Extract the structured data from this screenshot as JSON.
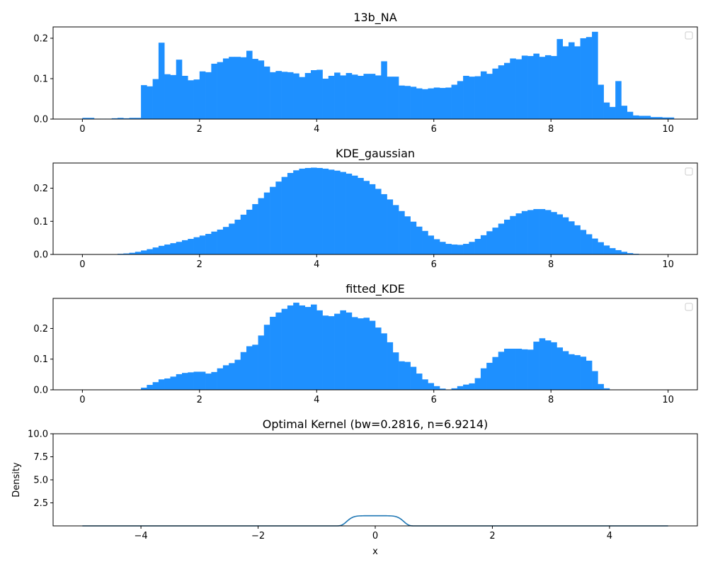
{
  "chart_data": [
    {
      "type": "bar",
      "title": "13b_NA",
      "xlabel": "",
      "ylabel": "",
      "xlim": [
        -0.5,
        10.5
      ],
      "ylim": [
        0,
        0.228
      ],
      "xticks": [
        0,
        2,
        4,
        6,
        8,
        10
      ],
      "yticks": [
        0.0,
        0.1,
        0.2
      ],
      "ytick_labels": [
        "0.0",
        "0.1",
        "0.2"
      ],
      "grid": false,
      "legend": "top-right",
      "bin_start": 0,
      "bin_width": 0.1,
      "color": "#1e90ff",
      "values": [
        0.003,
        0.003,
        0.001,
        0.001,
        0.001,
        0.002,
        0.003,
        0.002,
        0.003,
        0.003,
        0.084,
        0.081,
        0.099,
        0.189,
        0.111,
        0.109,
        0.147,
        0.107,
        0.096,
        0.098,
        0.118,
        0.116,
        0.137,
        0.141,
        0.15,
        0.154,
        0.154,
        0.153,
        0.169,
        0.149,
        0.145,
        0.13,
        0.116,
        0.119,
        0.117,
        0.116,
        0.113,
        0.104,
        0.114,
        0.121,
        0.122,
        0.1,
        0.107,
        0.115,
        0.108,
        0.114,
        0.11,
        0.107,
        0.112,
        0.112,
        0.108,
        0.143,
        0.105,
        0.105,
        0.083,
        0.082,
        0.08,
        0.076,
        0.074,
        0.076,
        0.078,
        0.077,
        0.078,
        0.085,
        0.094,
        0.107,
        0.105,
        0.106,
        0.118,
        0.112,
        0.125,
        0.133,
        0.139,
        0.15,
        0.148,
        0.157,
        0.156,
        0.162,
        0.154,
        0.158,
        0.156,
        0.198,
        0.18,
        0.19,
        0.18,
        0.2,
        0.203,
        0.216,
        0.085,
        0.041,
        0.03,
        0.094,
        0.033,
        0.018,
        0.009,
        0.008,
        0.008,
        0.005,
        0.005,
        0.004,
        0.004
      ]
    },
    {
      "type": "bar",
      "title": "KDE_gaussian",
      "xlabel": "",
      "ylabel": "",
      "xlim": [
        -0.5,
        10.5
      ],
      "ylim": [
        0,
        0.276
      ],
      "xticks": [
        0,
        2,
        4,
        6,
        8,
        10
      ],
      "yticks": [
        0.0,
        0.1,
        0.2
      ],
      "ytick_labels": [
        "0.0",
        "0.1",
        "0.2"
      ],
      "grid": false,
      "legend": "top-right",
      "bin_start": 0,
      "bin_width": 0.1,
      "color": "#1e90ff",
      "values": [
        0,
        0,
        0,
        0,
        0.001,
        0.001,
        0.002,
        0.003,
        0.005,
        0.008,
        0.012,
        0.016,
        0.021,
        0.026,
        0.03,
        0.034,
        0.038,
        0.043,
        0.047,
        0.052,
        0.057,
        0.062,
        0.069,
        0.075,
        0.083,
        0.093,
        0.105,
        0.12,
        0.135,
        0.152,
        0.17,
        0.187,
        0.204,
        0.22,
        0.234,
        0.246,
        0.254,
        0.259,
        0.261,
        0.262,
        0.261,
        0.259,
        0.256,
        0.253,
        0.249,
        0.244,
        0.238,
        0.231,
        0.222,
        0.212,
        0.198,
        0.182,
        0.166,
        0.149,
        0.131,
        0.115,
        0.099,
        0.084,
        0.071,
        0.057,
        0.046,
        0.038,
        0.032,
        0.03,
        0.029,
        0.032,
        0.038,
        0.047,
        0.058,
        0.07,
        0.081,
        0.093,
        0.105,
        0.116,
        0.124,
        0.131,
        0.134,
        0.137,
        0.137,
        0.134,
        0.128,
        0.121,
        0.112,
        0.1,
        0.088,
        0.074,
        0.061,
        0.048,
        0.037,
        0.027,
        0.019,
        0.013,
        0.008,
        0.004,
        0.002,
        0.001,
        0,
        0,
        0,
        0,
        0
      ]
    },
    {
      "type": "bar",
      "title": "fitted_KDE",
      "xlabel": "",
      "ylabel": "",
      "xlim": [
        -0.5,
        10.5
      ],
      "ylim": [
        0,
        0.298
      ],
      "xticks": [
        0,
        2,
        4,
        6,
        8,
        10
      ],
      "yticks": [
        0.0,
        0.1,
        0.2
      ],
      "ytick_labels": [
        "0.0",
        "0.1",
        "0.2"
      ],
      "grid": false,
      "legend": "top-right",
      "bin_start": 0,
      "bin_width": 0.1,
      "color": "#1e90ff",
      "values": [
        0,
        0,
        0,
        0,
        0,
        0,
        0,
        0,
        0,
        0,
        0.007,
        0.016,
        0.025,
        0.034,
        0.037,
        0.043,
        0.051,
        0.055,
        0.057,
        0.059,
        0.059,
        0.053,
        0.058,
        0.07,
        0.08,
        0.087,
        0.098,
        0.123,
        0.142,
        0.147,
        0.177,
        0.212,
        0.238,
        0.252,
        0.264,
        0.275,
        0.284,
        0.275,
        0.27,
        0.278,
        0.259,
        0.242,
        0.24,
        0.248,
        0.259,
        0.252,
        0.237,
        0.233,
        0.235,
        0.225,
        0.203,
        0.184,
        0.155,
        0.122,
        0.093,
        0.091,
        0.075,
        0.053,
        0.034,
        0.022,
        0.012,
        0.004,
        0,
        0.005,
        0.012,
        0.017,
        0.021,
        0.038,
        0.07,
        0.088,
        0.107,
        0.124,
        0.134,
        0.134,
        0.134,
        0.132,
        0.131,
        0.157,
        0.168,
        0.161,
        0.155,
        0.138,
        0.126,
        0.116,
        0.113,
        0.108,
        0.095,
        0.061,
        0.019,
        0.005,
        0,
        0,
        0,
        0,
        0,
        0,
        0,
        0,
        0,
        0,
        0
      ]
    },
    {
      "type": "line",
      "title": "Optimal Kernel (bw=0.2816, n=6.9214)",
      "xlabel": "x",
      "ylabel": "Density",
      "xlim": [
        -5.5,
        5.5
      ],
      "ylim": [
        0,
        10.0
      ],
      "xticks": [
        -4,
        -2,
        0,
        2,
        4
      ],
      "xtick_labels": [
        "−4",
        "−2",
        "0",
        "2",
        "4"
      ],
      "yticks": [
        2.5,
        5.0,
        7.5,
        10.0
      ],
      "ytick_labels": [
        "2.5",
        "5.0",
        "7.5",
        "10.0"
      ],
      "grid": false,
      "color": "#1f77b4",
      "kernel": {
        "x_min": -5,
        "x_max": 5,
        "samples": 400,
        "peak": 1.1,
        "half_width": 0.5,
        "exponent": 6.9214
      }
    }
  ]
}
